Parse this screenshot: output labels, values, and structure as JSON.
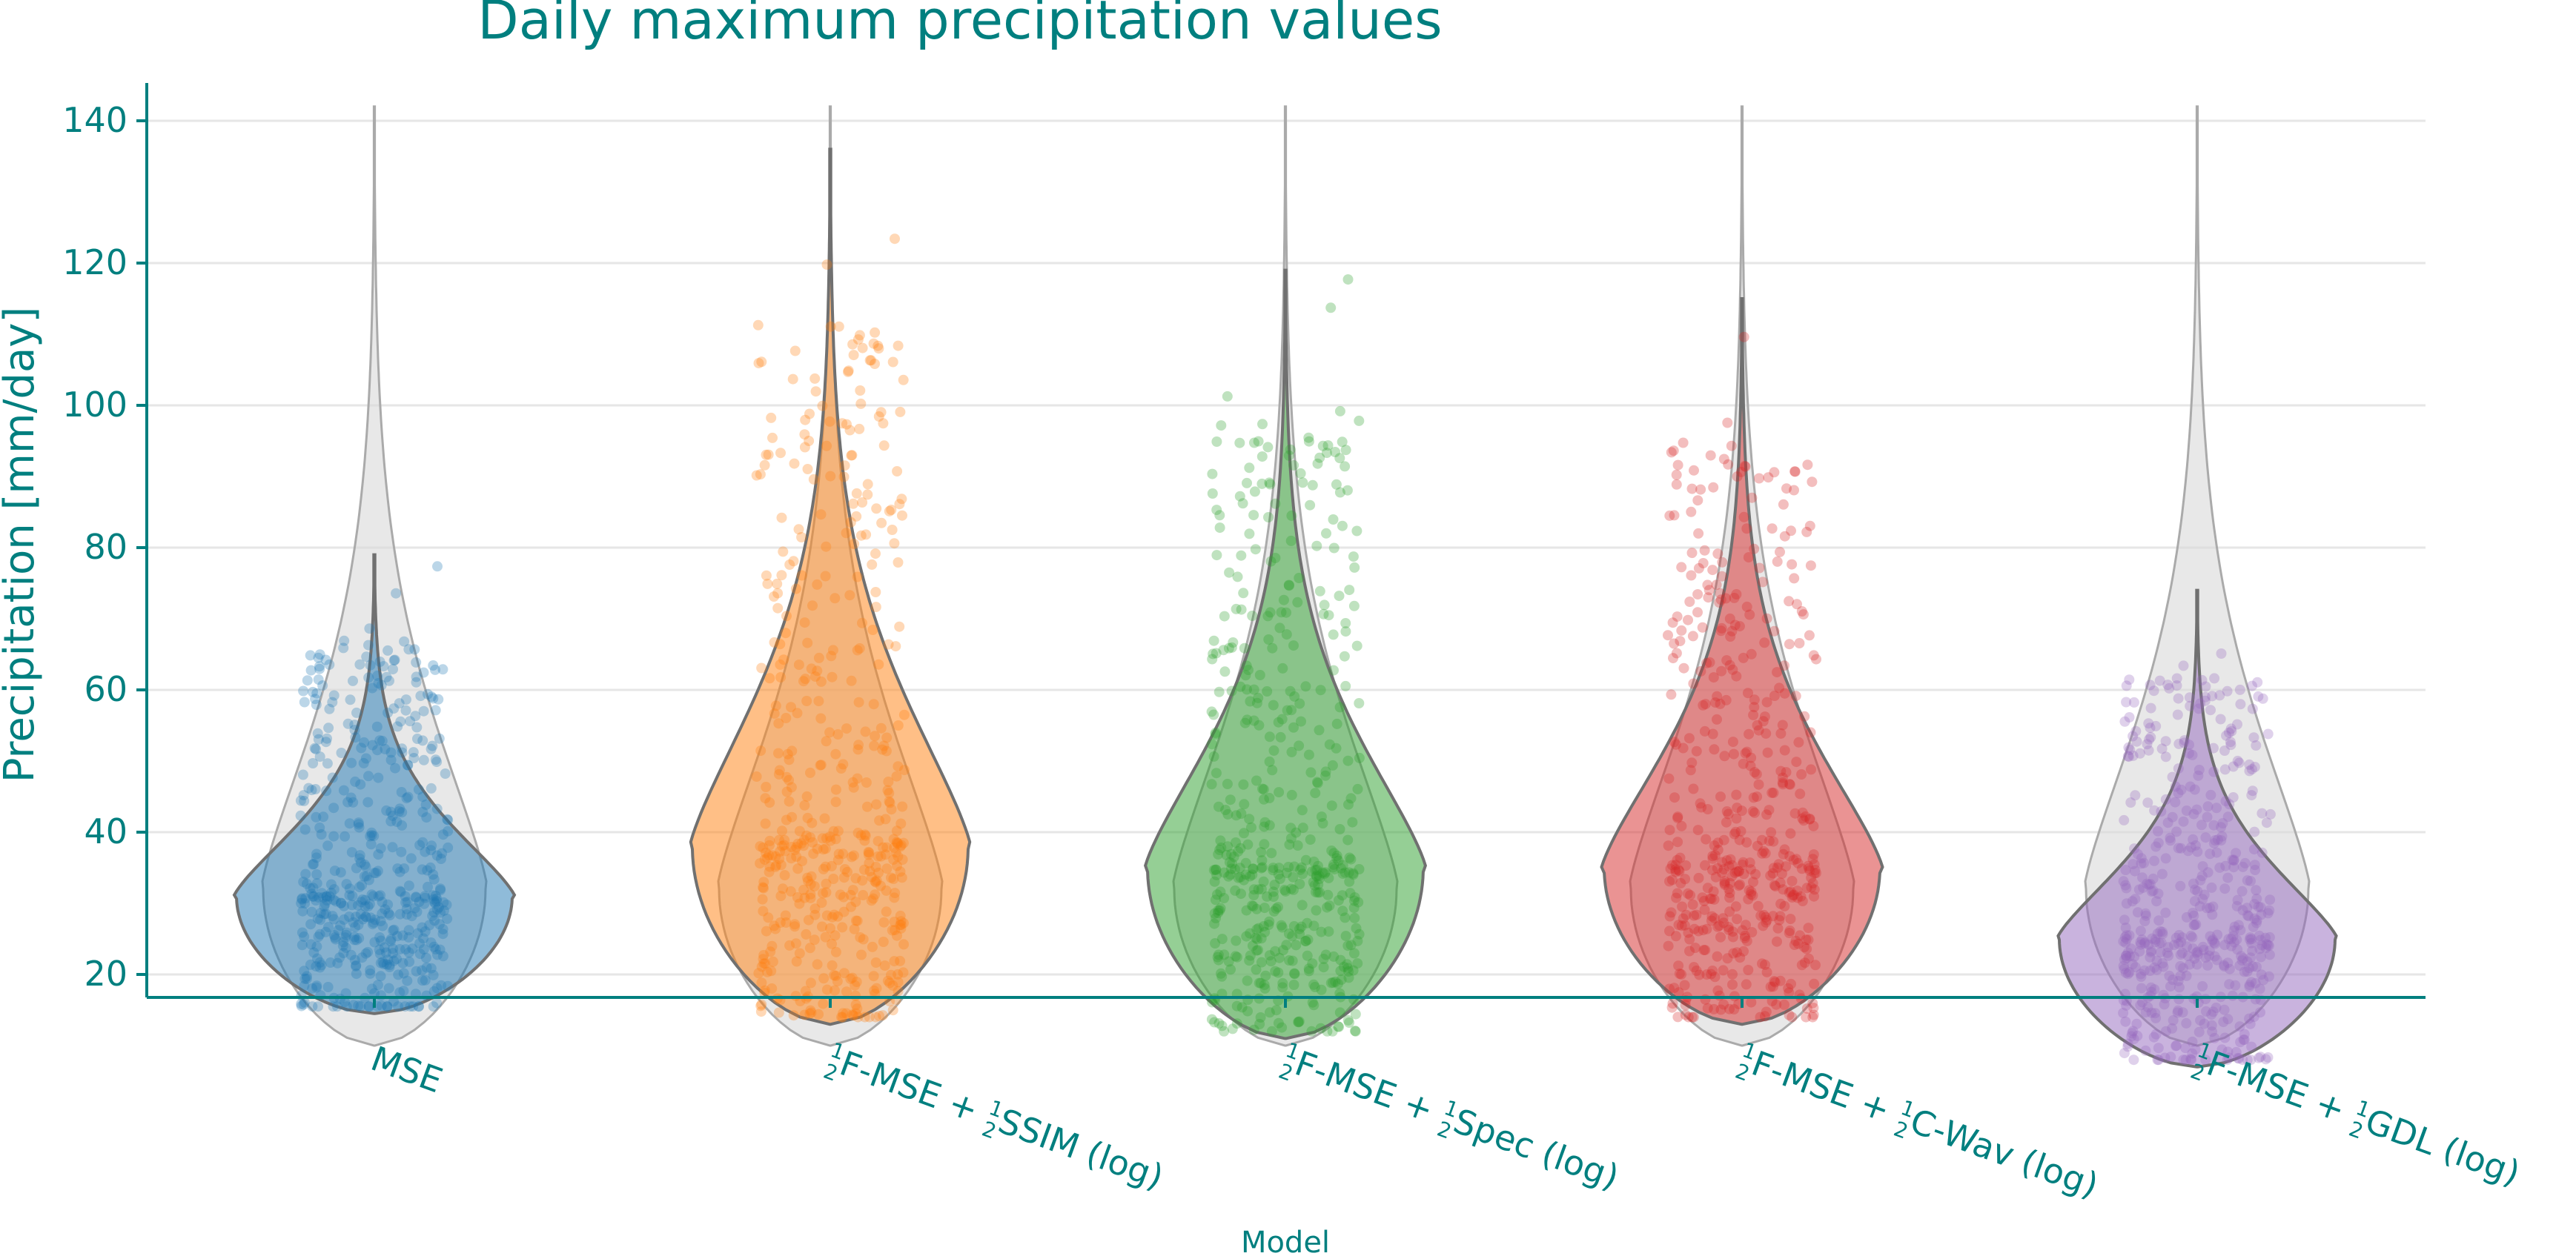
{
  "chart_data": {
    "type": "violin",
    "title": "Daily maximum precipitation values",
    "xlabel": "Model",
    "ylabel": "Precipitation [mm/day]",
    "ylim": [
      0,
      142
    ],
    "yticks": [
      20,
      40,
      60,
      80,
      100,
      120,
      140
    ],
    "grid": "horizontal",
    "text_color": "#007f7f",
    "reference_distribution": {
      "color": "#d9d9d9",
      "min": 10,
      "max": 142,
      "mode": 32,
      "peak_half_width": 1.0
    },
    "categories": [
      {
        "name": "MSE",
        "label": {
          "lead": "MSE",
          "second": "",
          "tail": ""
        },
        "color": "#1f77b4",
        "min": 14.5,
        "max": 79,
        "mode": 31,
        "peak_half_width": 1.2
      },
      {
        "name": "½F-MSE + ½SSIM (log)",
        "label": {
          "lead": "F-MSE + ",
          "second": "SSIM (log)",
          "tail": ""
        },
        "color": "#ff7f0e",
        "min": 13,
        "max": 136,
        "mode": 38,
        "peak_half_width": 1.2
      },
      {
        "name": "½F-MSE + ½Spec (log)",
        "label": {
          "lead": "F-MSE + ",
          "second": "Spec (log)",
          "tail": ""
        },
        "color": "#2ca02c",
        "min": 11,
        "max": 119,
        "mode": 35,
        "peak_half_width": 1.2
      },
      {
        "name": "½F-MSE + ½C-Wav (log)",
        "label": {
          "lead": "F-MSE + ",
          "second": "C-Wav (log)",
          "tail": ""
        },
        "color": "#d62728",
        "min": 13,
        "max": 115,
        "mode": 35,
        "peak_half_width": 1.2
      },
      {
        "name": "½F-MSE + ½GDL (log)",
        "label": {
          "lead": "F-MSE + ",
          "second": "GDL (log)",
          "tail": ""
        },
        "color": "#9467bd",
        "min": 7,
        "max": 74,
        "mode": 25,
        "peak_half_width": 1.2
      }
    ],
    "fraction_numerator": "1",
    "fraction_denominator": "2"
  }
}
